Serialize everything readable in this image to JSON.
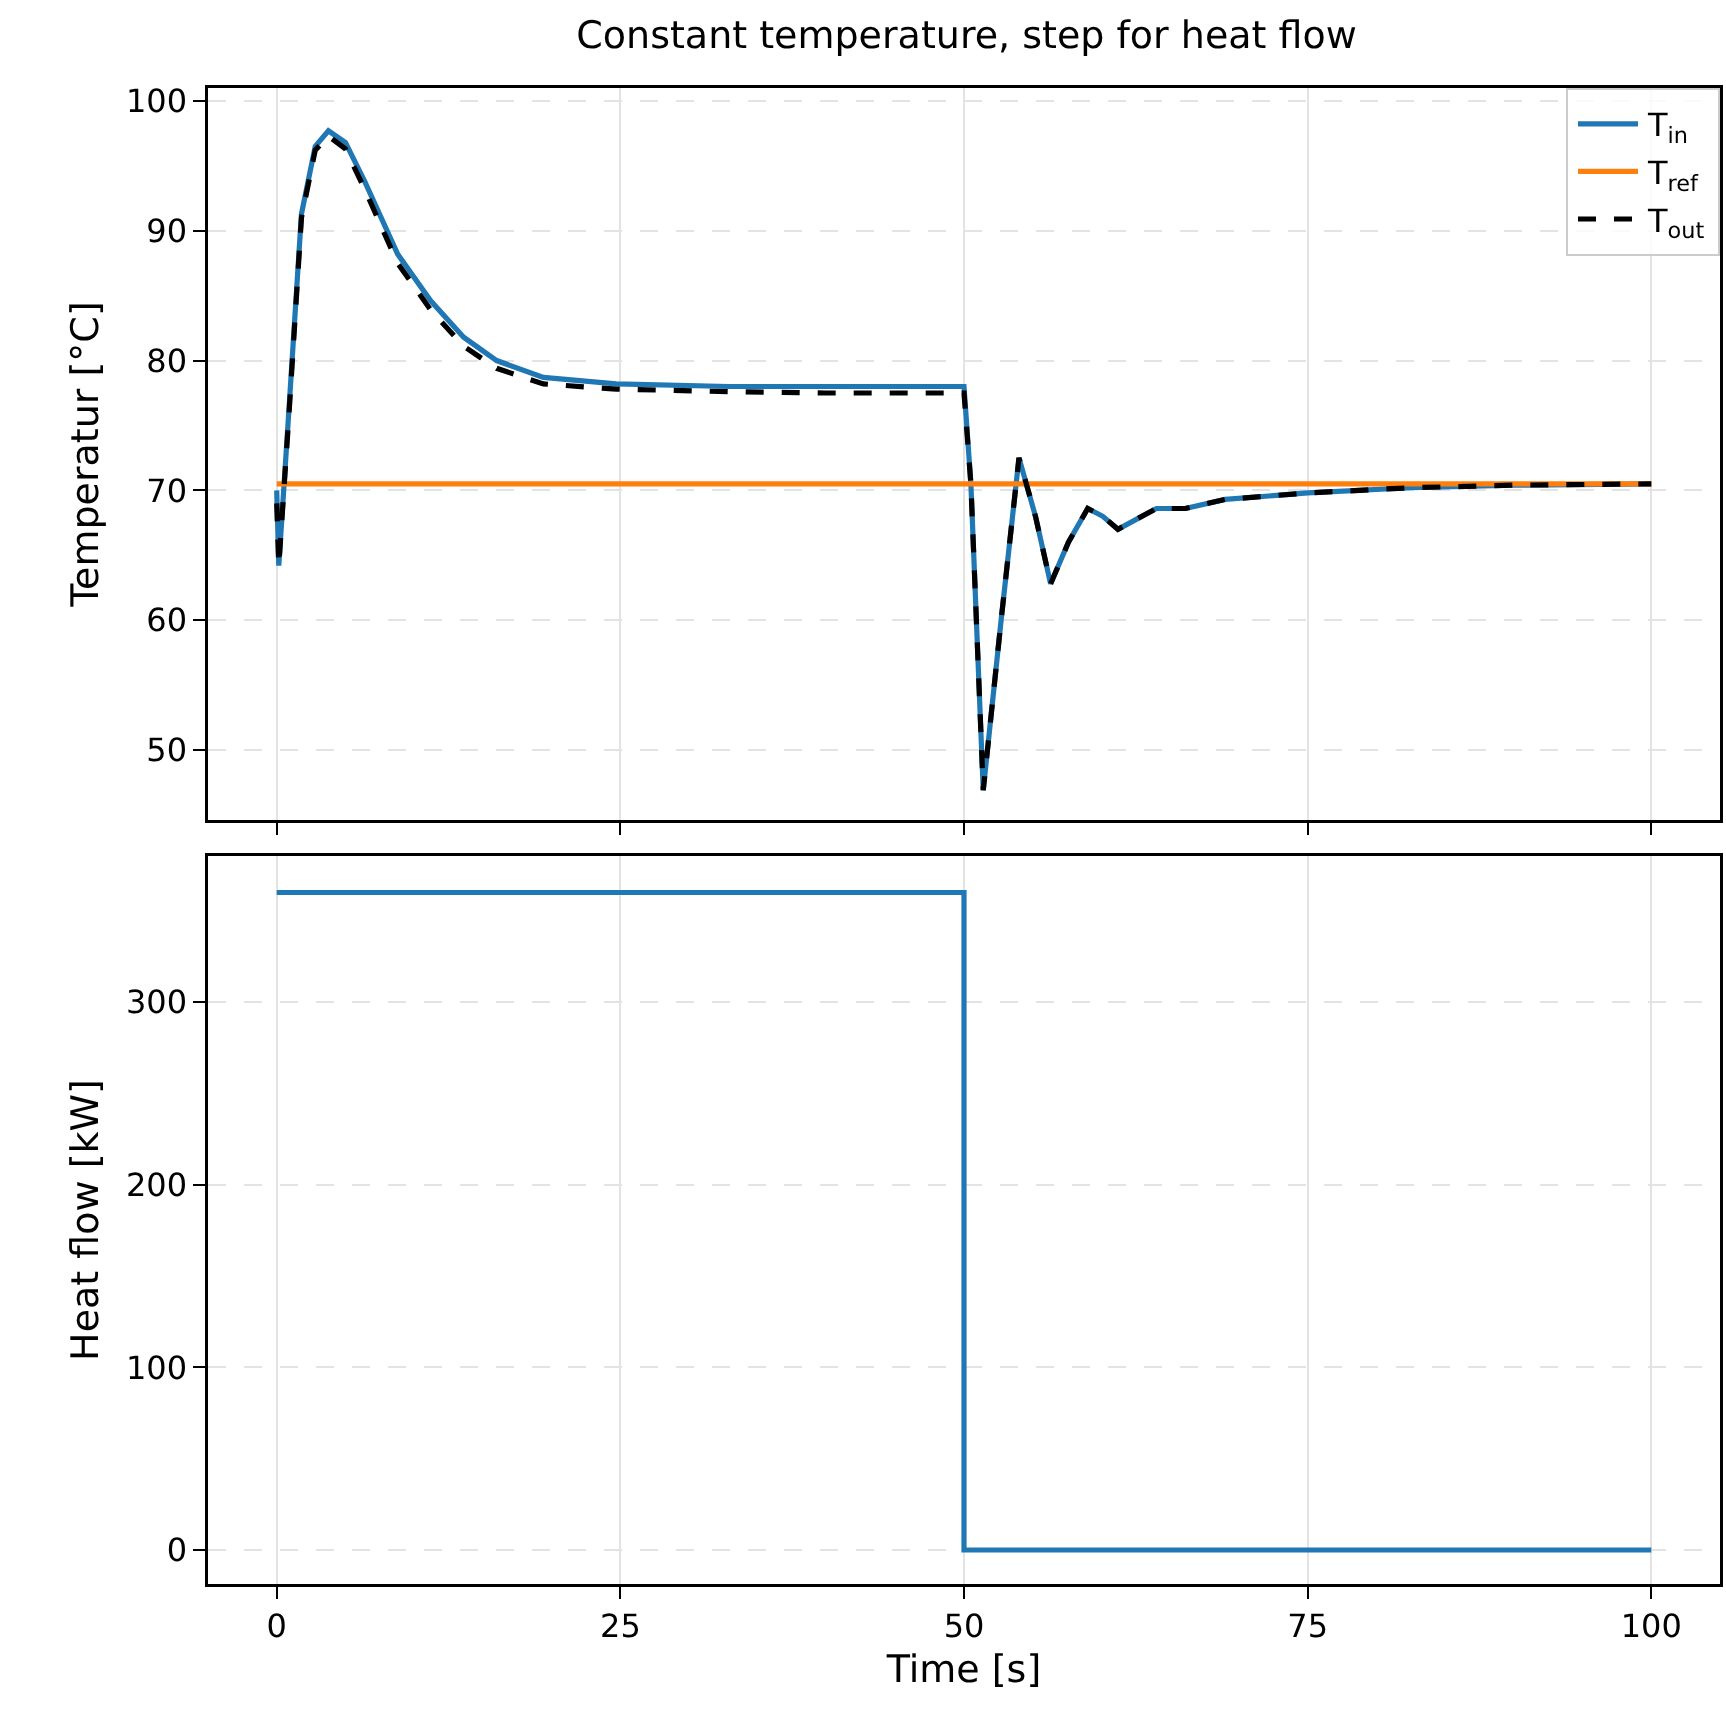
{
  "chart_data": [
    {
      "type": "line",
      "title": "Constant temperature, step for heat flow",
      "ylabel": "Temperatur [°C]",
      "xlim": [
        -5,
        105
      ],
      "xticks": [
        0,
        25,
        50,
        75,
        100
      ],
      "ylim": [
        44.6,
        101
      ],
      "yticks": [
        50,
        60,
        70,
        80,
        90,
        100
      ],
      "grid": true,
      "legend": "top right",
      "tick_labels": "y",
      "series": [
        {
          "name": "T$_{in}$",
          "color": "#1f77b4",
          "line_style": "solid",
          "x": [
            0,
            0.15,
            0.87,
            1.8,
            2.8,
            3.76,
            5,
            6.4,
            8.8,
            11.2,
            13.6,
            16,
            19.4,
            24.7,
            32.9,
            40,
            50,
            50.5,
            51.4,
            52.7,
            54,
            55.2,
            56.3,
            57.6,
            59,
            60.1,
            61.2,
            62.6,
            64,
            66.1,
            69,
            75,
            82.5,
            90,
            100
          ],
          "values": [
            70,
            64.2,
            75.9,
            91.3,
            96.5,
            97.7,
            96.8,
            93.8,
            88.2,
            84.6,
            81.8,
            80,
            78.7,
            78.2,
            78,
            78,
            78,
            70.5,
            46.9,
            60,
            72.5,
            68,
            62.8,
            66,
            68.6,
            68,
            67,
            67.8,
            68.6,
            68.6,
            69.3,
            69.8,
            70.2,
            70.4,
            70.5
          ]
        },
        {
          "name": "T$_{ref}$",
          "color": "#ff7f0e",
          "line_style": "solid",
          "x": [
            0,
            100
          ],
          "values": [
            70.5,
            70.5
          ]
        },
        {
          "name": "T$_{out}$",
          "color": "#000000",
          "line_style": "dashed",
          "x": [
            0,
            0.15,
            0.87,
            1.8,
            2.8,
            3.76,
            5,
            6.4,
            8.8,
            11.2,
            13.6,
            16,
            19.4,
            24.7,
            32.9,
            40,
            50,
            50.5,
            51.4,
            52.7,
            54,
            55.2,
            56.3,
            57.6,
            59,
            60.1,
            61.2,
            62.6,
            64,
            66.1,
            69,
            75,
            82.5,
            90,
            100
          ],
          "values": [
            69,
            64.2,
            75.5,
            91,
            96.2,
            97.3,
            96.3,
            93.2,
            87.5,
            83.9,
            81.1,
            79.4,
            78.2,
            77.8,
            77.6,
            77.5,
            77.5,
            70.5,
            46.9,
            60,
            72.5,
            68,
            62.8,
            66,
            68.6,
            68,
            67,
            67.8,
            68.6,
            68.6,
            69.3,
            69.8,
            70.2,
            70.4,
            70.5
          ]
        }
      ]
    },
    {
      "type": "step",
      "xlabel": "Time [s]",
      "ylabel": "Heat flow [kW]",
      "xlim": [
        -5,
        105
      ],
      "xticks": [
        0,
        25,
        50,
        75,
        100
      ],
      "ylim": [
        -18.6,
        380
      ],
      "yticks": [
        0,
        100,
        200,
        300
      ],
      "grid": true,
      "series": [
        {
          "color": "#1f77b4",
          "x": [
            0,
            50,
            100
          ],
          "values": [
            360,
            0,
            0
          ]
        }
      ]
    }
  ]
}
